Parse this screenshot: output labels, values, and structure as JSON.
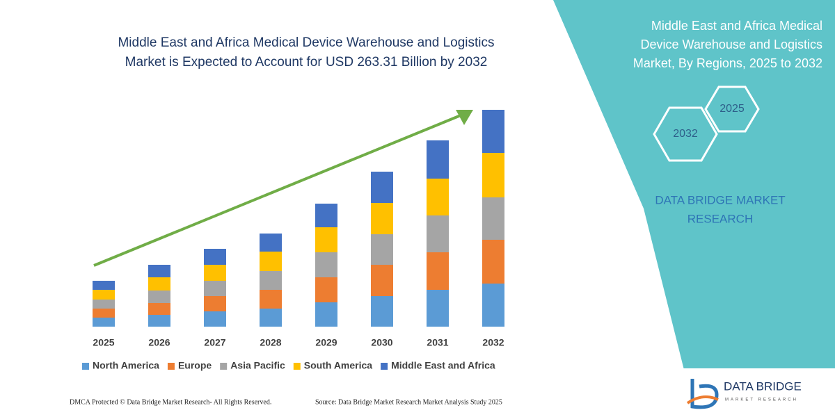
{
  "chart_data": {
    "type": "bar",
    "stacked": true,
    "title": [
      "Middle East and Africa Medical Device Warehouse and Logistics",
      "Market is Expected to Account for USD 263.31 Billion by 2032"
    ],
    "categories": [
      "2025",
      "2026",
      "2027",
      "2028",
      "2029",
      "2030",
      "2031",
      "2032"
    ],
    "series": [
      {
        "name": "North America",
        "color": "#5b9bd5",
        "values": [
          13,
          17,
          22,
          26,
          35,
          44,
          53,
          62
        ]
      },
      {
        "name": "Europe",
        "color": "#ed7d31",
        "values": [
          13,
          17,
          22,
          27,
          36,
          45,
          54,
          63
        ]
      },
      {
        "name": "Asia Pacific",
        "color": "#a5a5a5",
        "values": [
          13,
          18,
          22,
          27,
          36,
          44,
          53,
          61
        ]
      },
      {
        "name": "South America",
        "color": "#ffc000",
        "values": [
          14,
          19,
          23,
          28,
          36,
          45,
          53,
          64
        ]
      },
      {
        "name": "Middle East and Africa",
        "color": "#4472c4",
        "values": [
          13,
          18,
          23,
          26,
          34,
          45,
          55,
          62
        ]
      }
    ],
    "legend": "bottom"
  },
  "panel": {
    "title": [
      "Middle East and Africa Medical",
      "Device Warehouse and Logistics",
      "Market, By Regions, 2025 to 2032"
    ],
    "hexagons": [
      "2025",
      "2032"
    ],
    "brand": [
      "DATA BRIDGE MARKET",
      "RESEARCH"
    ]
  },
  "footer": {
    "left": "DMCA Protected © Data Bridge Market Research-  All Rights Reserved.",
    "right": "Source: Data Bridge Market Research  Market Analysis Study 2025"
  },
  "logo": {
    "name": "DATA BRIDGE",
    "tagline": "MARKET RESEARCH"
  }
}
